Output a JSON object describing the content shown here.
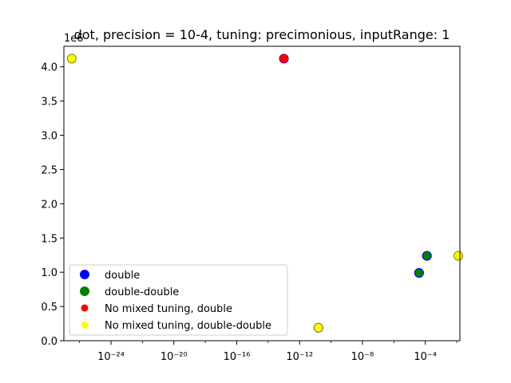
{
  "chart_data": {
    "type": "scatter",
    "title": "dot, precision = 10-4, tuning: precimonious, inputRange: 1",
    "xscale": "log",
    "xlim_exponent": [
      -27,
      -1.8
    ],
    "x_tick_labels": [
      "10⁻²⁴",
      "10⁻²⁰",
      "10⁻¹⁶",
      "10⁻¹²",
      "10⁻⁸",
      "10⁻⁴"
    ],
    "x_tick_exponents": [
      -24,
      -20,
      -16,
      -12,
      -8,
      -4
    ],
    "ylim": [
      0,
      4.3
    ],
    "y_tick_labels": [
      "0.0",
      "0.5",
      "1.0",
      "1.5",
      "2.0",
      "2.5",
      "3.0",
      "3.5",
      "4.0"
    ],
    "y_tick_values": [
      0.0,
      0.5,
      1.0,
      1.5,
      2.0,
      2.5,
      3.0,
      3.5,
      4.0
    ],
    "y_multiplier": "1e6",
    "legend_position": "lower-left",
    "series": [
      {
        "name": "double",
        "color": "#0000ff",
        "edgecolor": "#0000ff",
        "points": [
          {
            "x_exp": -13.0,
            "y": 4.12
          },
          {
            "x_exp": -10.8,
            "y": 0.19
          },
          {
            "x_exp": -4.4,
            "y": 0.99
          },
          {
            "x_exp": -3.9,
            "y": 1.24
          }
        ]
      },
      {
        "name": "double-double",
        "color": "#008000",
        "edgecolor": "#0000ff",
        "points": [
          {
            "x_exp": -4.4,
            "y": 0.99
          },
          {
            "x_exp": -3.9,
            "y": 1.24
          }
        ]
      },
      {
        "name": "No mixed tuning, double",
        "color": "#ff0000",
        "edgecolor": "#800080",
        "points": [
          {
            "x_exp": -13.0,
            "y": 4.12
          }
        ]
      },
      {
        "name": "No mixed tuning, double-double",
        "color": "#ffff00",
        "edgecolor": "#808000",
        "points": [
          {
            "x_exp": -26.5,
            "y": 4.12
          },
          {
            "x_exp": -10.8,
            "y": 0.19
          },
          {
            "x_exp": -1.9,
            "y": 1.24
          }
        ]
      }
    ]
  }
}
